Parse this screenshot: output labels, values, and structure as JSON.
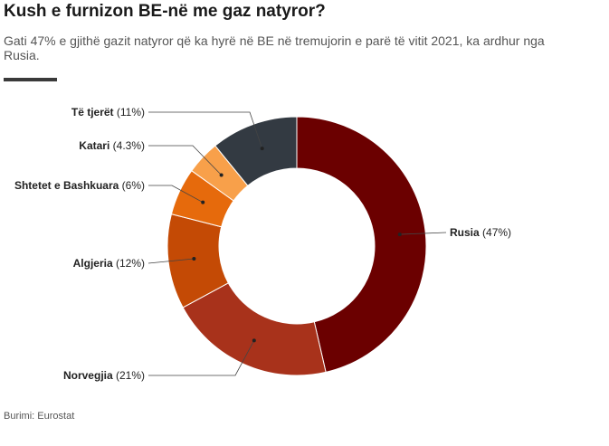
{
  "header": {
    "title": "Kush e furnizon BE-në me gaz natyror?",
    "subtitle": "Gati 47% e gjithë gazit natyror që ka hyrë në BE në tremujorin e parë të vitit 2021, ka ardhur nga Rusia."
  },
  "footer": {
    "source": "Burimi: Eurostat"
  },
  "chart_data": {
    "type": "pie",
    "donut": true,
    "categories": [
      "Rusia",
      "Norvegjia",
      "Algjeria",
      "Shtetet e Bashkuara",
      "Katari",
      "Të tjerët"
    ],
    "values": [
      47,
      21,
      12,
      6,
      4.3,
      11
    ],
    "value_labels": [
      "(47%)",
      "(21%)",
      "(12%)",
      "(6%)",
      "(4.3%)",
      "(11%)"
    ],
    "colors": [
      "#6b0000",
      "#a8321b",
      "#c44a05",
      "#e66a0c",
      "#f8a04a",
      "#333a42"
    ]
  }
}
